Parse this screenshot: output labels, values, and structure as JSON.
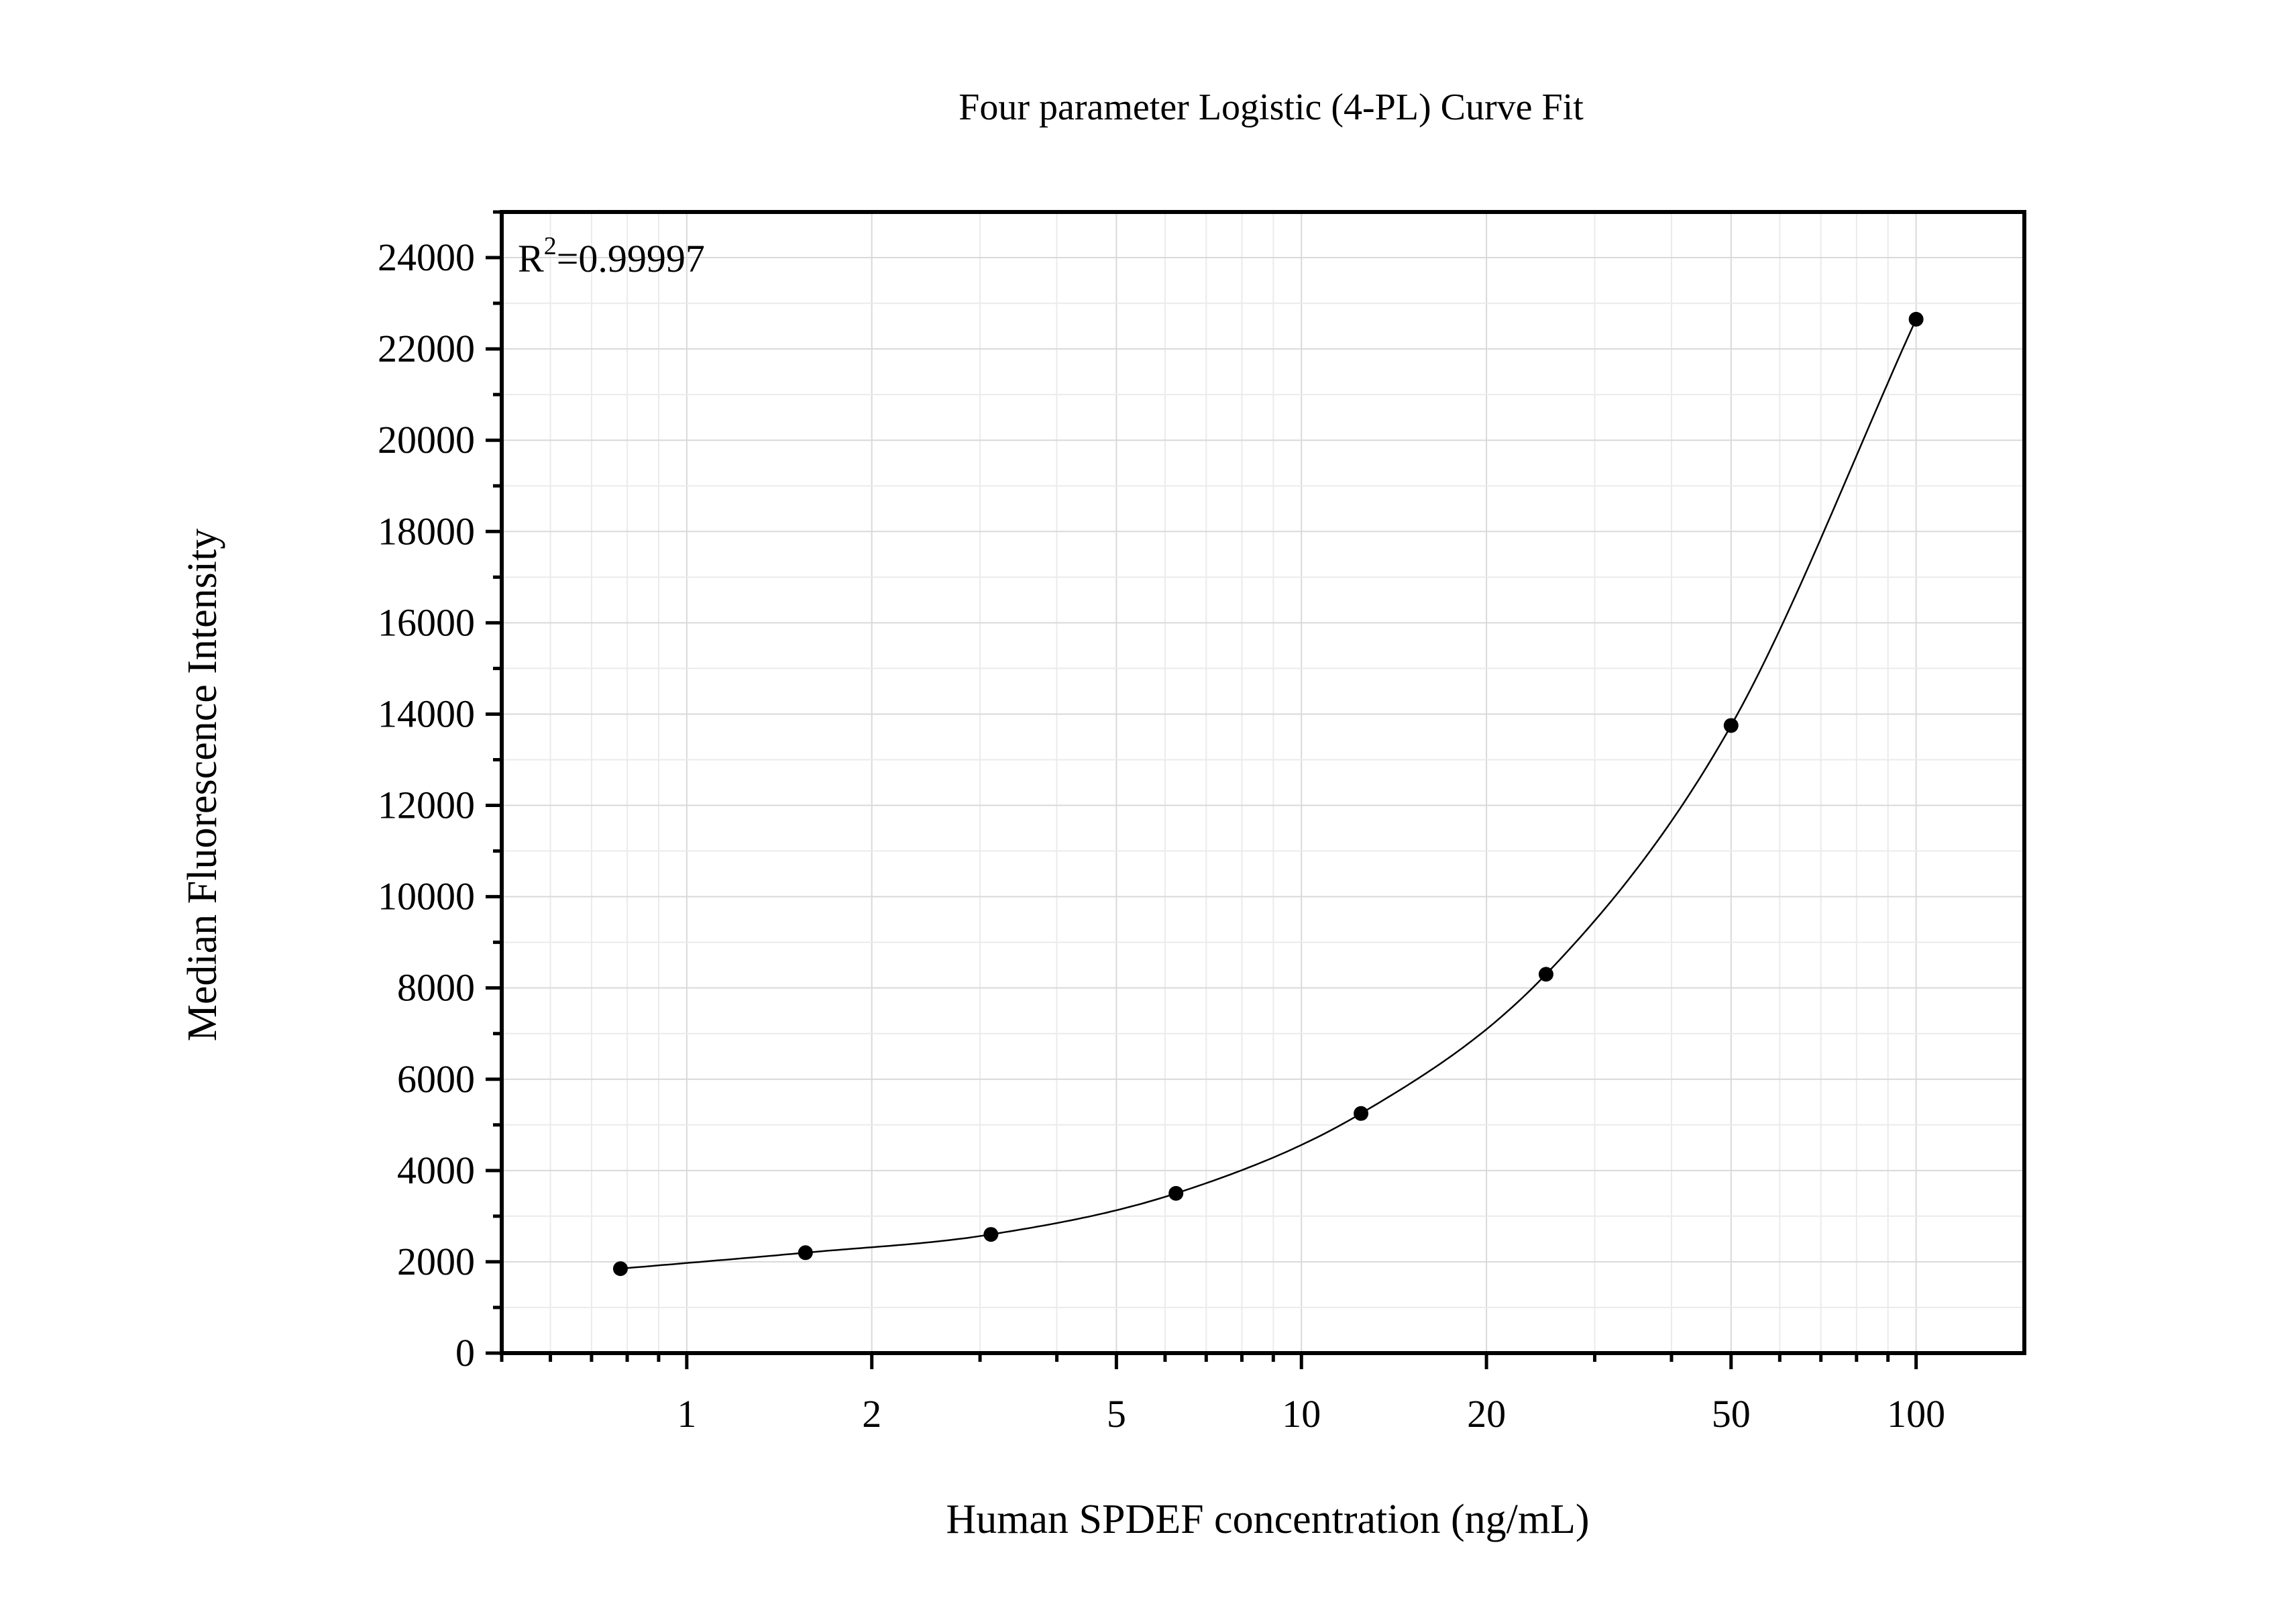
{
  "chart_data": {
    "type": "scatter",
    "title": "Four parameter Logistic (4-PL) Curve Fit",
    "xlabel": "Human SPDEF concentration (ng/mL)",
    "ylabel": "Median Fluorescence Intensity",
    "x_scale": "log",
    "xlim": [
      0.5,
      150
    ],
    "ylim": [
      0,
      25000
    ],
    "x_ticks": [
      1,
      2,
      5,
      10,
      20,
      50,
      100
    ],
    "x_tick_labels": [
      "1",
      "2",
      "5",
      "10",
      "20",
      "50",
      "100"
    ],
    "y_ticks": [
      0,
      2000,
      4000,
      6000,
      8000,
      10000,
      12000,
      14000,
      16000,
      18000,
      20000,
      22000,
      24000
    ],
    "y_tick_labels": [
      "0",
      "2000",
      "4000",
      "6000",
      "8000",
      "10000",
      "12000",
      "14000",
      "16000",
      "18000",
      "20000",
      "22000",
      "24000"
    ],
    "grid": true,
    "annotation": {
      "base": "R",
      "superscript": "2",
      "value": "=0.99997"
    },
    "series": [
      {
        "marker": "circle",
        "color": "#000000",
        "x": [
          0.78,
          1.56,
          3.125,
          6.25,
          12.5,
          25,
          50,
          100
        ],
        "y": [
          1850,
          2200,
          2600,
          3500,
          5250,
          8300,
          13750,
          22650
        ]
      }
    ],
    "fit_curve": {
      "model": "4-PL",
      "color": "#000000"
    }
  }
}
